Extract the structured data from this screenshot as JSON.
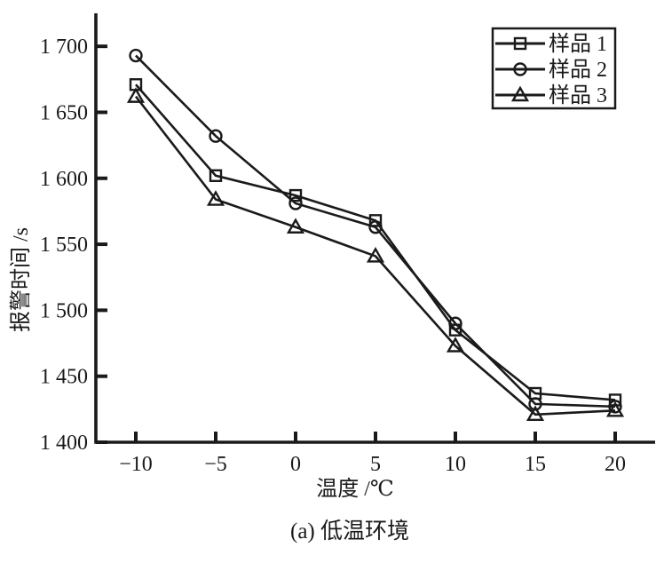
{
  "chart_data": {
    "type": "line",
    "title": "",
    "xlabel": "温度 /℃",
    "ylabel": "报警时间 /s",
    "caption": "(a) 低温环境",
    "x": [
      -10,
      -5,
      0,
      5,
      10,
      15,
      20
    ],
    "series": [
      {
        "name": "样品 1",
        "marker": "square",
        "values": [
          1671,
          1602,
          1587,
          1568,
          1485,
          1437,
          1432
        ]
      },
      {
        "name": "样品 2",
        "marker": "circle",
        "values": [
          1693,
          1632,
          1581,
          1563,
          1490,
          1429,
          1427
        ]
      },
      {
        "name": "样品 3",
        "marker": "triangle",
        "values": [
          1662,
          1584,
          1563,
          1541,
          1473,
          1421,
          1424
        ]
      }
    ],
    "xlim": [
      -12.5,
      22.5
    ],
    "ylim": [
      1400,
      1725
    ],
    "xticks": {
      "values": [
        -10,
        -5,
        0,
        5,
        10,
        15,
        20
      ],
      "labels": [
        "−10",
        "−5",
        "0",
        "5",
        "10",
        "15",
        "20"
      ]
    },
    "yticks": {
      "values": [
        1400,
        1450,
        1500,
        1550,
        1600,
        1650,
        1700
      ],
      "labels": [
        "1 400",
        "1 450",
        "1 500",
        "1 550",
        "1 600",
        "1 650",
        "1 700"
      ]
    },
    "legend_position": "top-right",
    "grid": false,
    "line_color": "#1a1a1a",
    "background_color": "#ffffff"
  }
}
